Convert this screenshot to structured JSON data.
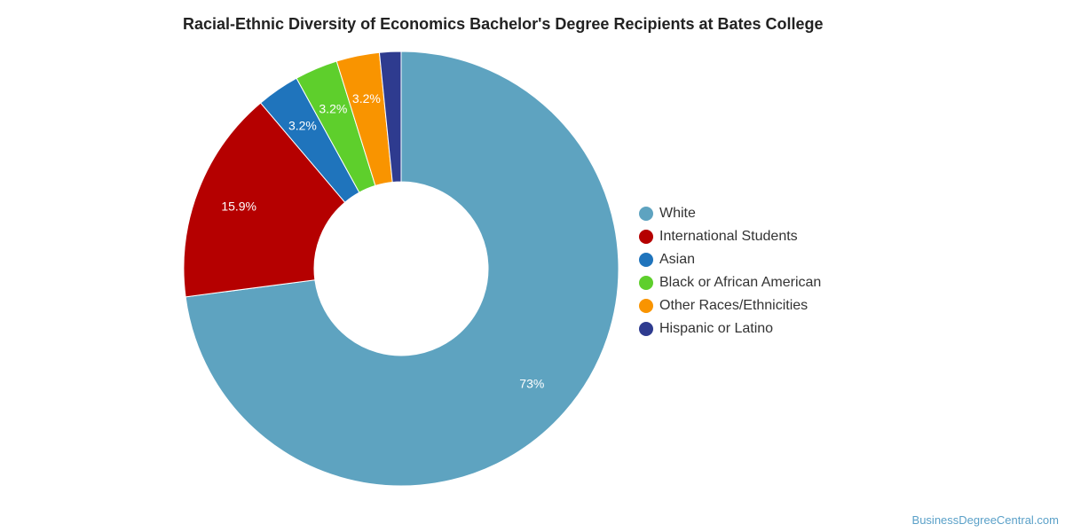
{
  "chart_data": {
    "type": "pie",
    "title": "Racial-Ethnic Diversity of Economics Bachelor's Degree Recipients at Bates College",
    "legend_position": "right",
    "donut": true,
    "slices": [
      {
        "label": "White",
        "value": 73.0,
        "display": "73%",
        "color": "#5ea3c0"
      },
      {
        "label": "International Students",
        "value": 15.9,
        "display": "15.9%",
        "color": "#b50000"
      },
      {
        "label": "Asian",
        "value": 3.2,
        "display": "3.2%",
        "color": "#1f74bc"
      },
      {
        "label": "Black or African American",
        "value": 3.2,
        "display": "3.2%",
        "color": "#5ecf2c"
      },
      {
        "label": "Other Races/Ethnicities",
        "value": 3.2,
        "display": "3.2%",
        "color": "#f99400"
      },
      {
        "label": "Hispanic or Latino",
        "value": 1.6,
        "display": "",
        "color": "#2e3b8f"
      }
    ]
  },
  "credit": "BusinessDegreeCentral.com"
}
